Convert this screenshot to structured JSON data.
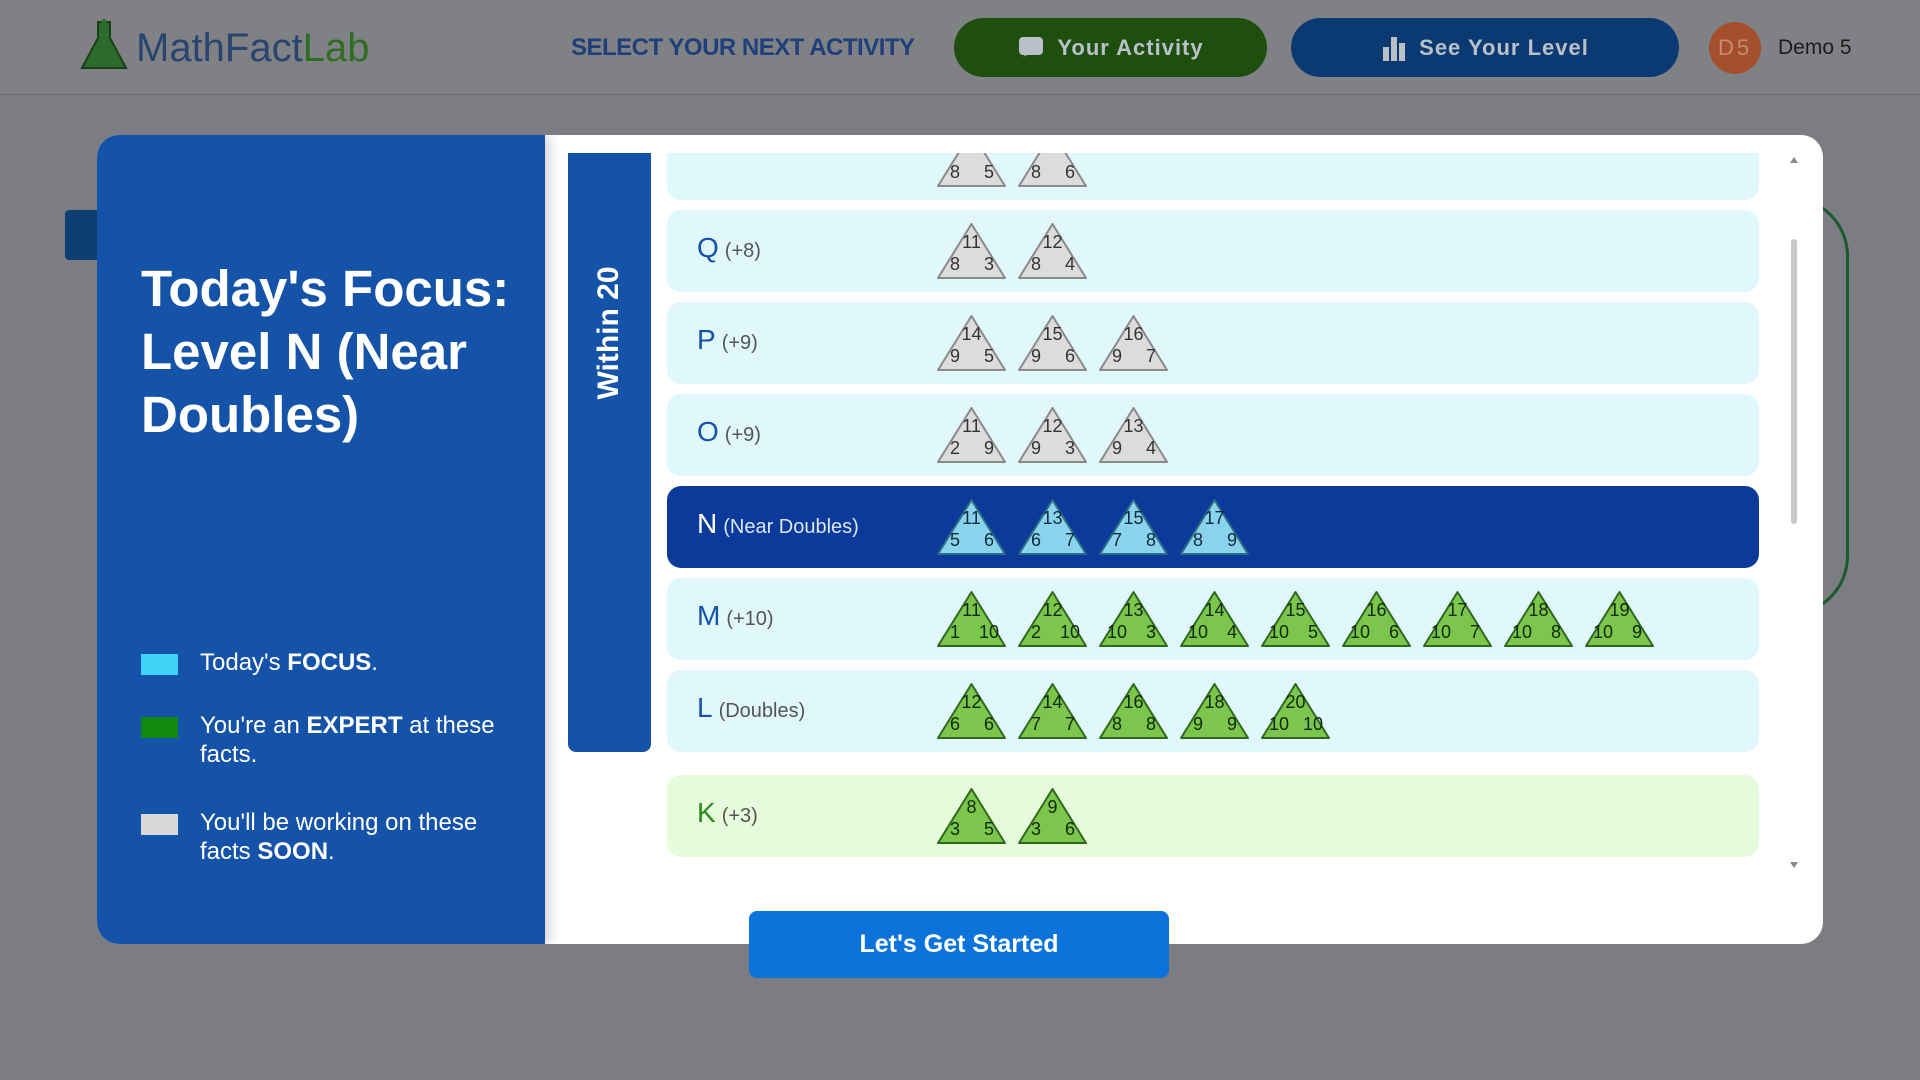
{
  "header": {
    "logo": [
      "MathFact",
      "Lab"
    ],
    "nav": "SELECT YOUR NEXT ACTIVITY",
    "buttons": [
      "Your Activity",
      "See Your Level"
    ],
    "avatar": "D5",
    "user": "Demo 5"
  },
  "focus": {
    "title": "Today's Focus: Level N (Near Doubles)",
    "legend": [
      {
        "status": "focus",
        "color": "#40d3f7",
        "parts": [
          "Today's ",
          "FOCUS",
          "."
        ]
      },
      {
        "status": "expert",
        "color": "#0f8a0f",
        "parts": [
          "You're an ",
          "EXPERT",
          " at these facts."
        ]
      },
      {
        "status": "soon",
        "color": "#d8d8d8",
        "parts": [
          "You'll be working on these facts ",
          "SOON",
          "."
        ]
      }
    ]
  },
  "sections": [
    {
      "label": "Within 20",
      "color": "#1553a8",
      "levels": [
        {
          "status": "soon",
          "facts": [
            {
              "a": 8,
              "b": 5
            },
            {
              "a": 8,
              "b": 6
            }
          ]
        },
        {
          "letter": "Q",
          "sub": "(+8)",
          "status": "soon",
          "facts": [
            {
              "sum": 11,
              "a": 8,
              "b": 3
            },
            {
              "sum": 12,
              "a": 8,
              "b": 4
            }
          ]
        },
        {
          "letter": "P",
          "sub": "(+9)",
          "status": "soon",
          "facts": [
            {
              "sum": 14,
              "a": 9,
              "b": 5
            },
            {
              "sum": 15,
              "a": 9,
              "b": 6
            },
            {
              "sum": 16,
              "a": 9,
              "b": 7
            }
          ]
        },
        {
          "letter": "O",
          "sub": "(+9)",
          "status": "soon",
          "facts": [
            {
              "sum": 11,
              "a": 2,
              "b": 9
            },
            {
              "sum": 12,
              "a": 9,
              "b": 3
            },
            {
              "sum": 13,
              "a": 9,
              "b": 4
            }
          ]
        },
        {
          "letter": "N",
          "sub": "(Near Doubles)",
          "status": "focus",
          "facts": [
            {
              "sum": 11,
              "a": 5,
              "b": 6
            },
            {
              "sum": 13,
              "a": 6,
              "b": 7
            },
            {
              "sum": 15,
              "a": 7,
              "b": 8
            },
            {
              "sum": 17,
              "a": 8,
              "b": 9
            }
          ]
        },
        {
          "letter": "M",
          "sub": "(+10)",
          "status": "expert",
          "facts": [
            {
              "sum": 11,
              "a": 1,
              "b": 10
            },
            {
              "sum": 12,
              "a": 2,
              "b": 10
            },
            {
              "sum": 13,
              "a": 10,
              "b": 3
            },
            {
              "sum": 14,
              "a": 10,
              "b": 4
            },
            {
              "sum": 15,
              "a": 10,
              "b": 5
            },
            {
              "sum": 16,
              "a": 10,
              "b": 6
            },
            {
              "sum": 17,
              "a": 10,
              "b": 7
            },
            {
              "sum": 18,
              "a": 10,
              "b": 8
            },
            {
              "sum": 19,
              "a": 10,
              "b": 9
            }
          ]
        },
        {
          "letter": "L",
          "sub": "(Doubles)",
          "status": "expert",
          "facts": [
            {
              "sum": 12,
              "a": 6,
              "b": 6
            },
            {
              "sum": 14,
              "a": 7,
              "b": 7
            },
            {
              "sum": 16,
              "a": 8,
              "b": 8
            },
            {
              "sum": 18,
              "a": 9,
              "b": 9
            },
            {
              "sum": 20,
              "a": 10,
              "b": 10
            }
          ]
        }
      ]
    },
    {
      "color": "#3dbb2c",
      "levels": [
        {
          "letter": "K",
          "sub": "(+3)",
          "status": "expert",
          "facts": [
            {
              "sum": 8,
              "a": 3,
              "b": 5
            },
            {
              "sum": 9,
              "a": 3,
              "b": 6
            }
          ]
        }
      ]
    }
  ],
  "button": "Let's Get Started"
}
